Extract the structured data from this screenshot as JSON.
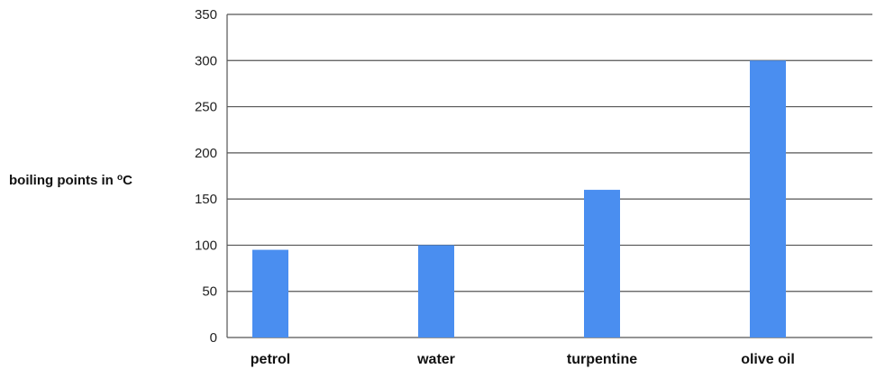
{
  "chart_data": {
    "type": "bar",
    "title": "",
    "xlabel": "",
    "ylabel": "boiling points in °C",
    "ylabel_parts": {
      "text": "boiling points in ",
      "degree": "o",
      "unit": "C"
    },
    "categories": [
      "petrol",
      "water",
      "turpentine",
      "olive oil"
    ],
    "values": [
      95,
      100,
      160,
      300
    ],
    "ylim": [
      0,
      350
    ],
    "yticks": [
      0,
      50,
      100,
      150,
      200,
      250,
      300,
      350
    ],
    "grid": true,
    "bar_color": "#4a8ef0",
    "grid_color": "#555555"
  }
}
